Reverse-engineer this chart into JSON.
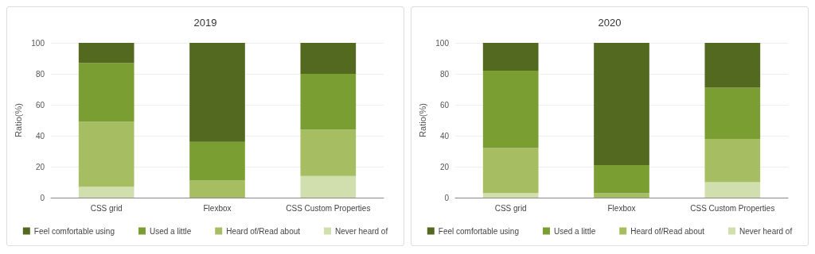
{
  "chart_data": [
    {
      "type": "bar",
      "title": "2019",
      "categories": [
        "CSS grid",
        "Flexbox",
        "CSS Custom Properties"
      ],
      "ylabel": "Ratio(%)",
      "stacked": true,
      "ylim": [
        0,
        100
      ],
      "yticks": [
        0,
        20,
        40,
        60,
        80,
        100
      ],
      "grid": "y",
      "legend": "bottom",
      "series": [
        {
          "name": "Never heard of",
          "color": "#d1dead",
          "values": [
            7,
            0,
            14
          ]
        },
        {
          "name": "Heard of/Read about",
          "color": "#a6bd62",
          "values": [
            42,
            11,
            30
          ]
        },
        {
          "name": "Used a little",
          "color": "#7a9e32",
          "values": [
            38,
            25,
            36
          ]
        },
        {
          "name": "Feel comfortable using",
          "color": "#52691f",
          "values": [
            13,
            64,
            20
          ]
        }
      ]
    },
    {
      "type": "bar",
      "title": "2020",
      "categories": [
        "CSS grid",
        "Flexbox",
        "CSS Custom Properties"
      ],
      "ylabel": "Ratio(%)",
      "stacked": true,
      "ylim": [
        0,
        100
      ],
      "yticks": [
        0,
        20,
        40,
        60,
        80,
        100
      ],
      "grid": "y",
      "legend": "bottom",
      "series": [
        {
          "name": "Never heard of",
          "color": "#d1dead",
          "values": [
            3,
            0,
            10
          ]
        },
        {
          "name": "Heard of/Read about",
          "color": "#a6bd62",
          "values": [
            29,
            3,
            28
          ]
        },
        {
          "name": "Used a little",
          "color": "#7a9e32",
          "values": [
            50,
            18,
            33
          ]
        },
        {
          "name": "Feel comfortable using",
          "color": "#52691f",
          "values": [
            18,
            79,
            29
          ]
        }
      ]
    }
  ]
}
